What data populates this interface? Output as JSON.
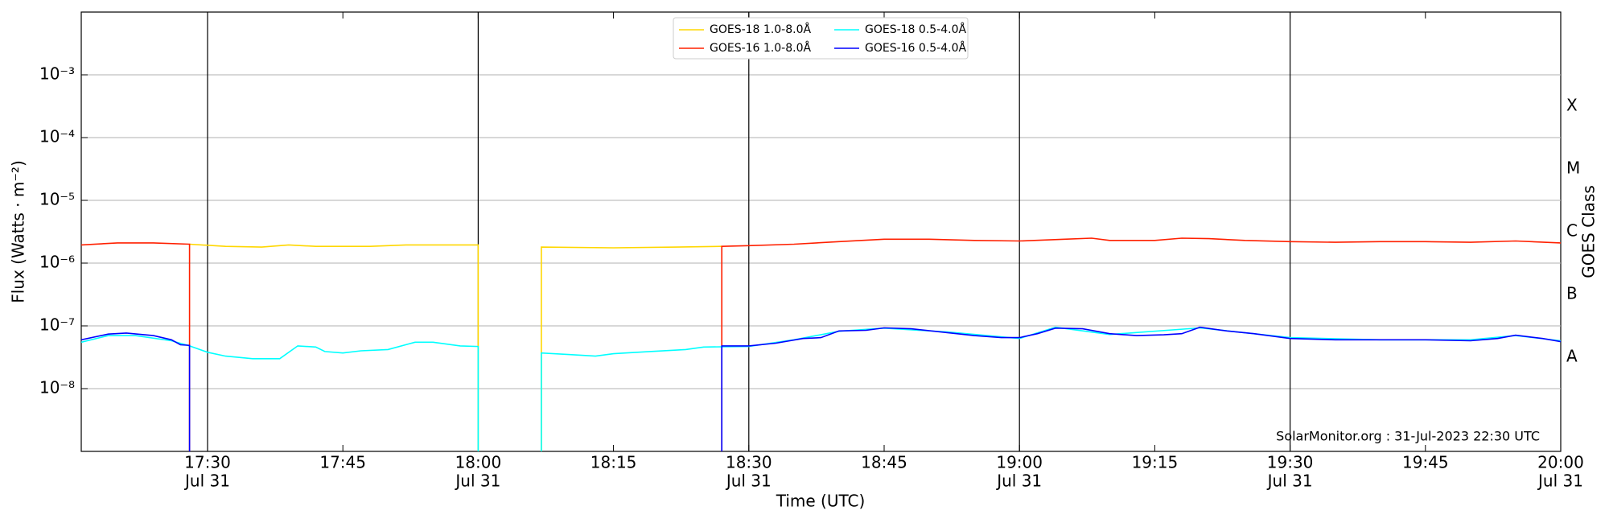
{
  "chart_data": {
    "type": "line",
    "xlabel": "Time (UTC)",
    "ylabel": "Flux (Watts · m⁻²)",
    "y2label": "GOES Class",
    "annotation": "SolarMonitor.org : 31-Jul-2023 22:30 UTC",
    "xlim": [
      "17:16",
      "20:00"
    ],
    "xticks": [
      {
        "value": "17:30",
        "label": [
          "17:30",
          "Jul 31"
        ]
      },
      "17:45",
      {
        "value": "18:00",
        "label": [
          "18:00",
          "Jul 31"
        ]
      },
      "18:15",
      {
        "value": "18:30",
        "label": [
          "18:30",
          "Jul 31"
        ]
      },
      "18:45",
      {
        "value": "19:00",
        "label": [
          "19:00",
          "Jul 31"
        ]
      },
      "19:15",
      {
        "value": "19:30",
        "label": [
          "19:30",
          "Jul 31"
        ]
      },
      "19:45",
      {
        "value": "20:00",
        "label": [
          "20:00",
          "Jul 31"
        ]
      }
    ],
    "vlines": [
      "17:30",
      "18:00",
      "18:30",
      "19:00",
      "19:30"
    ],
    "log_scale": true,
    "ylim": [
      1e-09,
      0.01
    ],
    "yticks": [
      {
        "value": 1e-08,
        "label": "10⁻⁸"
      },
      {
        "value": 1e-07,
        "label": "10⁻⁷"
      },
      {
        "value": 1e-06,
        "label": "10⁻⁶"
      },
      {
        "value": 1e-05,
        "label": "10⁻⁵"
      },
      {
        "value": 0.0001,
        "label": "10⁻⁴"
      },
      {
        "value": 0.001,
        "label": "10⁻³"
      }
    ],
    "y2lim": [
      1e-09,
      0.01
    ],
    "y2ticks": [
      {
        "value": 3.16e-08,
        "label": "A"
      },
      {
        "value": 3.16e-07,
        "label": "B"
      },
      {
        "value": 3.16e-06,
        "label": "C"
      },
      {
        "value": 3.16e-05,
        "label": "M"
      },
      {
        "value": 0.000316,
        "label": "X"
      }
    ],
    "grid": true,
    "legend": "upper center",
    "series": [
      {
        "name": "GOES-18 1.0-8.0Å",
        "color": "#ffd700",
        "x": [
          "17:28",
          "17:32",
          "17:36",
          "17:39",
          "17:42",
          "17:48",
          "17:52",
          "17:56",
          "18:00",
          "18:00",
          "18:03",
          "18:07",
          "18:07",
          "18:15",
          "18:22",
          "18:27"
        ],
        "values": [
          2e-06,
          1.85e-06,
          1.8e-06,
          1.95e-06,
          1.85e-06,
          1.85e-06,
          1.95e-06,
          1.95e-06,
          1.95e-06,
          1e-09,
          null,
          1e-09,
          1.8e-06,
          1.75e-06,
          1.8e-06,
          1.85e-06
        ]
      },
      {
        "name": "GOES-16 1.0-8.0Å",
        "color": "#ff2000",
        "x": [
          "17:16",
          "17:20",
          "17:24",
          "17:28",
          "17:28",
          "17:50",
          "18:27",
          "18:27",
          "18:30",
          "18:35",
          "18:40",
          "18:45",
          "18:50",
          "18:55",
          "19:00",
          "19:05",
          "19:08",
          "19:10",
          "19:15",
          "19:18",
          "19:21",
          "19:25",
          "19:30",
          "19:35",
          "19:40",
          "19:45",
          "19:50",
          "19:55",
          "20:00"
        ],
        "values": [
          1.95e-06,
          2.1e-06,
          2.1e-06,
          2e-06,
          1e-09,
          null,
          1e-09,
          1.85e-06,
          1.9e-06,
          2e-06,
          2.2e-06,
          2.4e-06,
          2.4e-06,
          2.3e-06,
          2.25e-06,
          2.4e-06,
          2.5e-06,
          2.3e-06,
          2.3e-06,
          2.5e-06,
          2.45e-06,
          2.3e-06,
          2.2e-06,
          2.15e-06,
          2.2e-06,
          2.2e-06,
          2.15e-06,
          2.25e-06,
          2.1e-06
        ]
      },
      {
        "name": "GOES-18 0.5-4.0Å",
        "color": "#00ffff",
        "x": [
          "17:16",
          "17:19",
          "17:22",
          "17:26",
          "17:28",
          "17:30",
          "17:32",
          "17:35",
          "17:38",
          "17:40",
          "17:42",
          "17:43",
          "17:45",
          "17:47",
          "17:50",
          "17:53",
          "17:55",
          "17:58",
          "18:00",
          "18:00",
          "18:03",
          "18:07",
          "18:07",
          "18:10",
          "18:13",
          "18:15",
          "18:19",
          "18:23",
          "18:25",
          "18:30",
          "18:35",
          "18:40",
          "18:45",
          "18:52",
          "19:00",
          "19:04",
          "19:10",
          "19:20",
          "19:30",
          "19:40",
          "19:50",
          "19:55",
          "20:00"
        ],
        "values": [
          5.5e-08,
          7e-08,
          7e-08,
          5.8e-08,
          4.8e-08,
          3.8e-08,
          3.3e-08,
          3e-08,
          3e-08,
          4.8e-08,
          4.6e-08,
          3.9e-08,
          3.7e-08,
          4e-08,
          4.2e-08,
          5.5e-08,
          5.5e-08,
          4.8e-08,
          4.7e-08,
          1e-09,
          null,
          1e-09,
          3.7e-08,
          3.5e-08,
          3.3e-08,
          3.6e-08,
          3.9e-08,
          4.2e-08,
          4.6e-08,
          4.7e-08,
          6e-08,
          8.2e-08,
          9.2e-08,
          8e-08,
          6.3e-08,
          9.5e-08,
          7.3e-08,
          9.3e-08,
          6.5e-08,
          6e-08,
          6e-08,
          7e-08,
          5.8e-08
        ]
      },
      {
        "name": "GOES-16 0.5-4.0Å",
        "color": "#0000ff",
        "x": [
          "17:16",
          "17:19",
          "17:21",
          "17:24",
          "17:26",
          "17:27",
          "17:28",
          "17:28",
          "17:50",
          "18:27",
          "18:27",
          "18:30",
          "18:33",
          "18:36",
          "18:38",
          "18:40",
          "18:43",
          "18:45",
          "18:48",
          "18:52",
          "18:55",
          "18:58",
          "19:00",
          "19:02",
          "19:04",
          "19:07",
          "19:10",
          "19:13",
          "19:16",
          "19:18",
          "19:20",
          "19:23",
          "19:26",
          "19:30",
          "19:35",
          "19:40",
          "19:45",
          "19:50",
          "19:53",
          "19:55",
          "19:58",
          "20:00"
        ],
        "values": [
          6e-08,
          7.4e-08,
          7.7e-08,
          7e-08,
          6e-08,
          5e-08,
          4.9e-08,
          1e-09,
          null,
          1e-09,
          4.8e-08,
          4.8e-08,
          5.3e-08,
          6.3e-08,
          6.5e-08,
          8.3e-08,
          8.5e-08,
          9.3e-08,
          9e-08,
          7.8e-08,
          7e-08,
          6.5e-08,
          6.5e-08,
          7.5e-08,
          9.2e-08,
          9e-08,
          7.5e-08,
          7e-08,
          7.2e-08,
          7.5e-08,
          9.5e-08,
          8.3e-08,
          7.5e-08,
          6.3e-08,
          6e-08,
          6e-08,
          6e-08,
          5.8e-08,
          6.3e-08,
          7.1e-08,
          6.3e-08,
          5.6e-08
        ]
      }
    ]
  }
}
